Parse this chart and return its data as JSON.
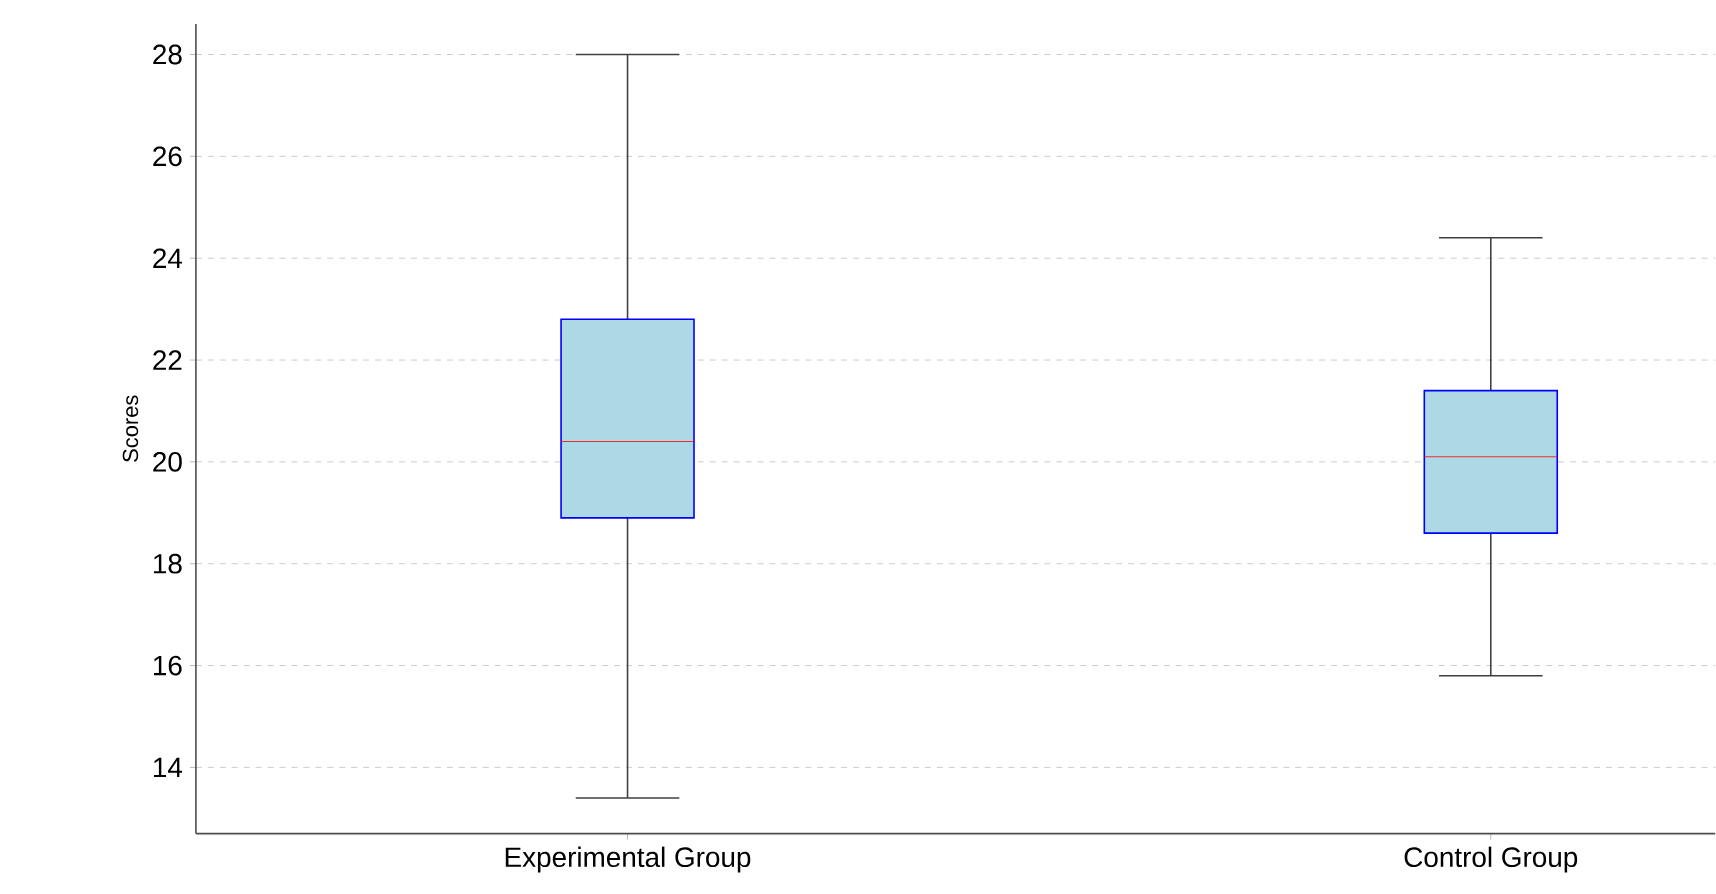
{
  "chart_data": {
    "type": "box",
    "ylabel": "Scores",
    "categories": [
      "Experimental Group",
      "Control Group"
    ],
    "boxes": [
      {
        "low": 13.4,
        "q1": 18.9,
        "median": 20.4,
        "q3": 22.8,
        "high": 28.0
      },
      {
        "low": 15.8,
        "q1": 18.6,
        "median": 20.1,
        "q3": 21.4,
        "high": 24.4
      }
    ],
    "color": "#add8e6",
    "ylim": [
      12.7,
      28.6
    ],
    "yticks": [
      14,
      16,
      18,
      20,
      22,
      24,
      26,
      28
    ],
    "grid": "y"
  }
}
